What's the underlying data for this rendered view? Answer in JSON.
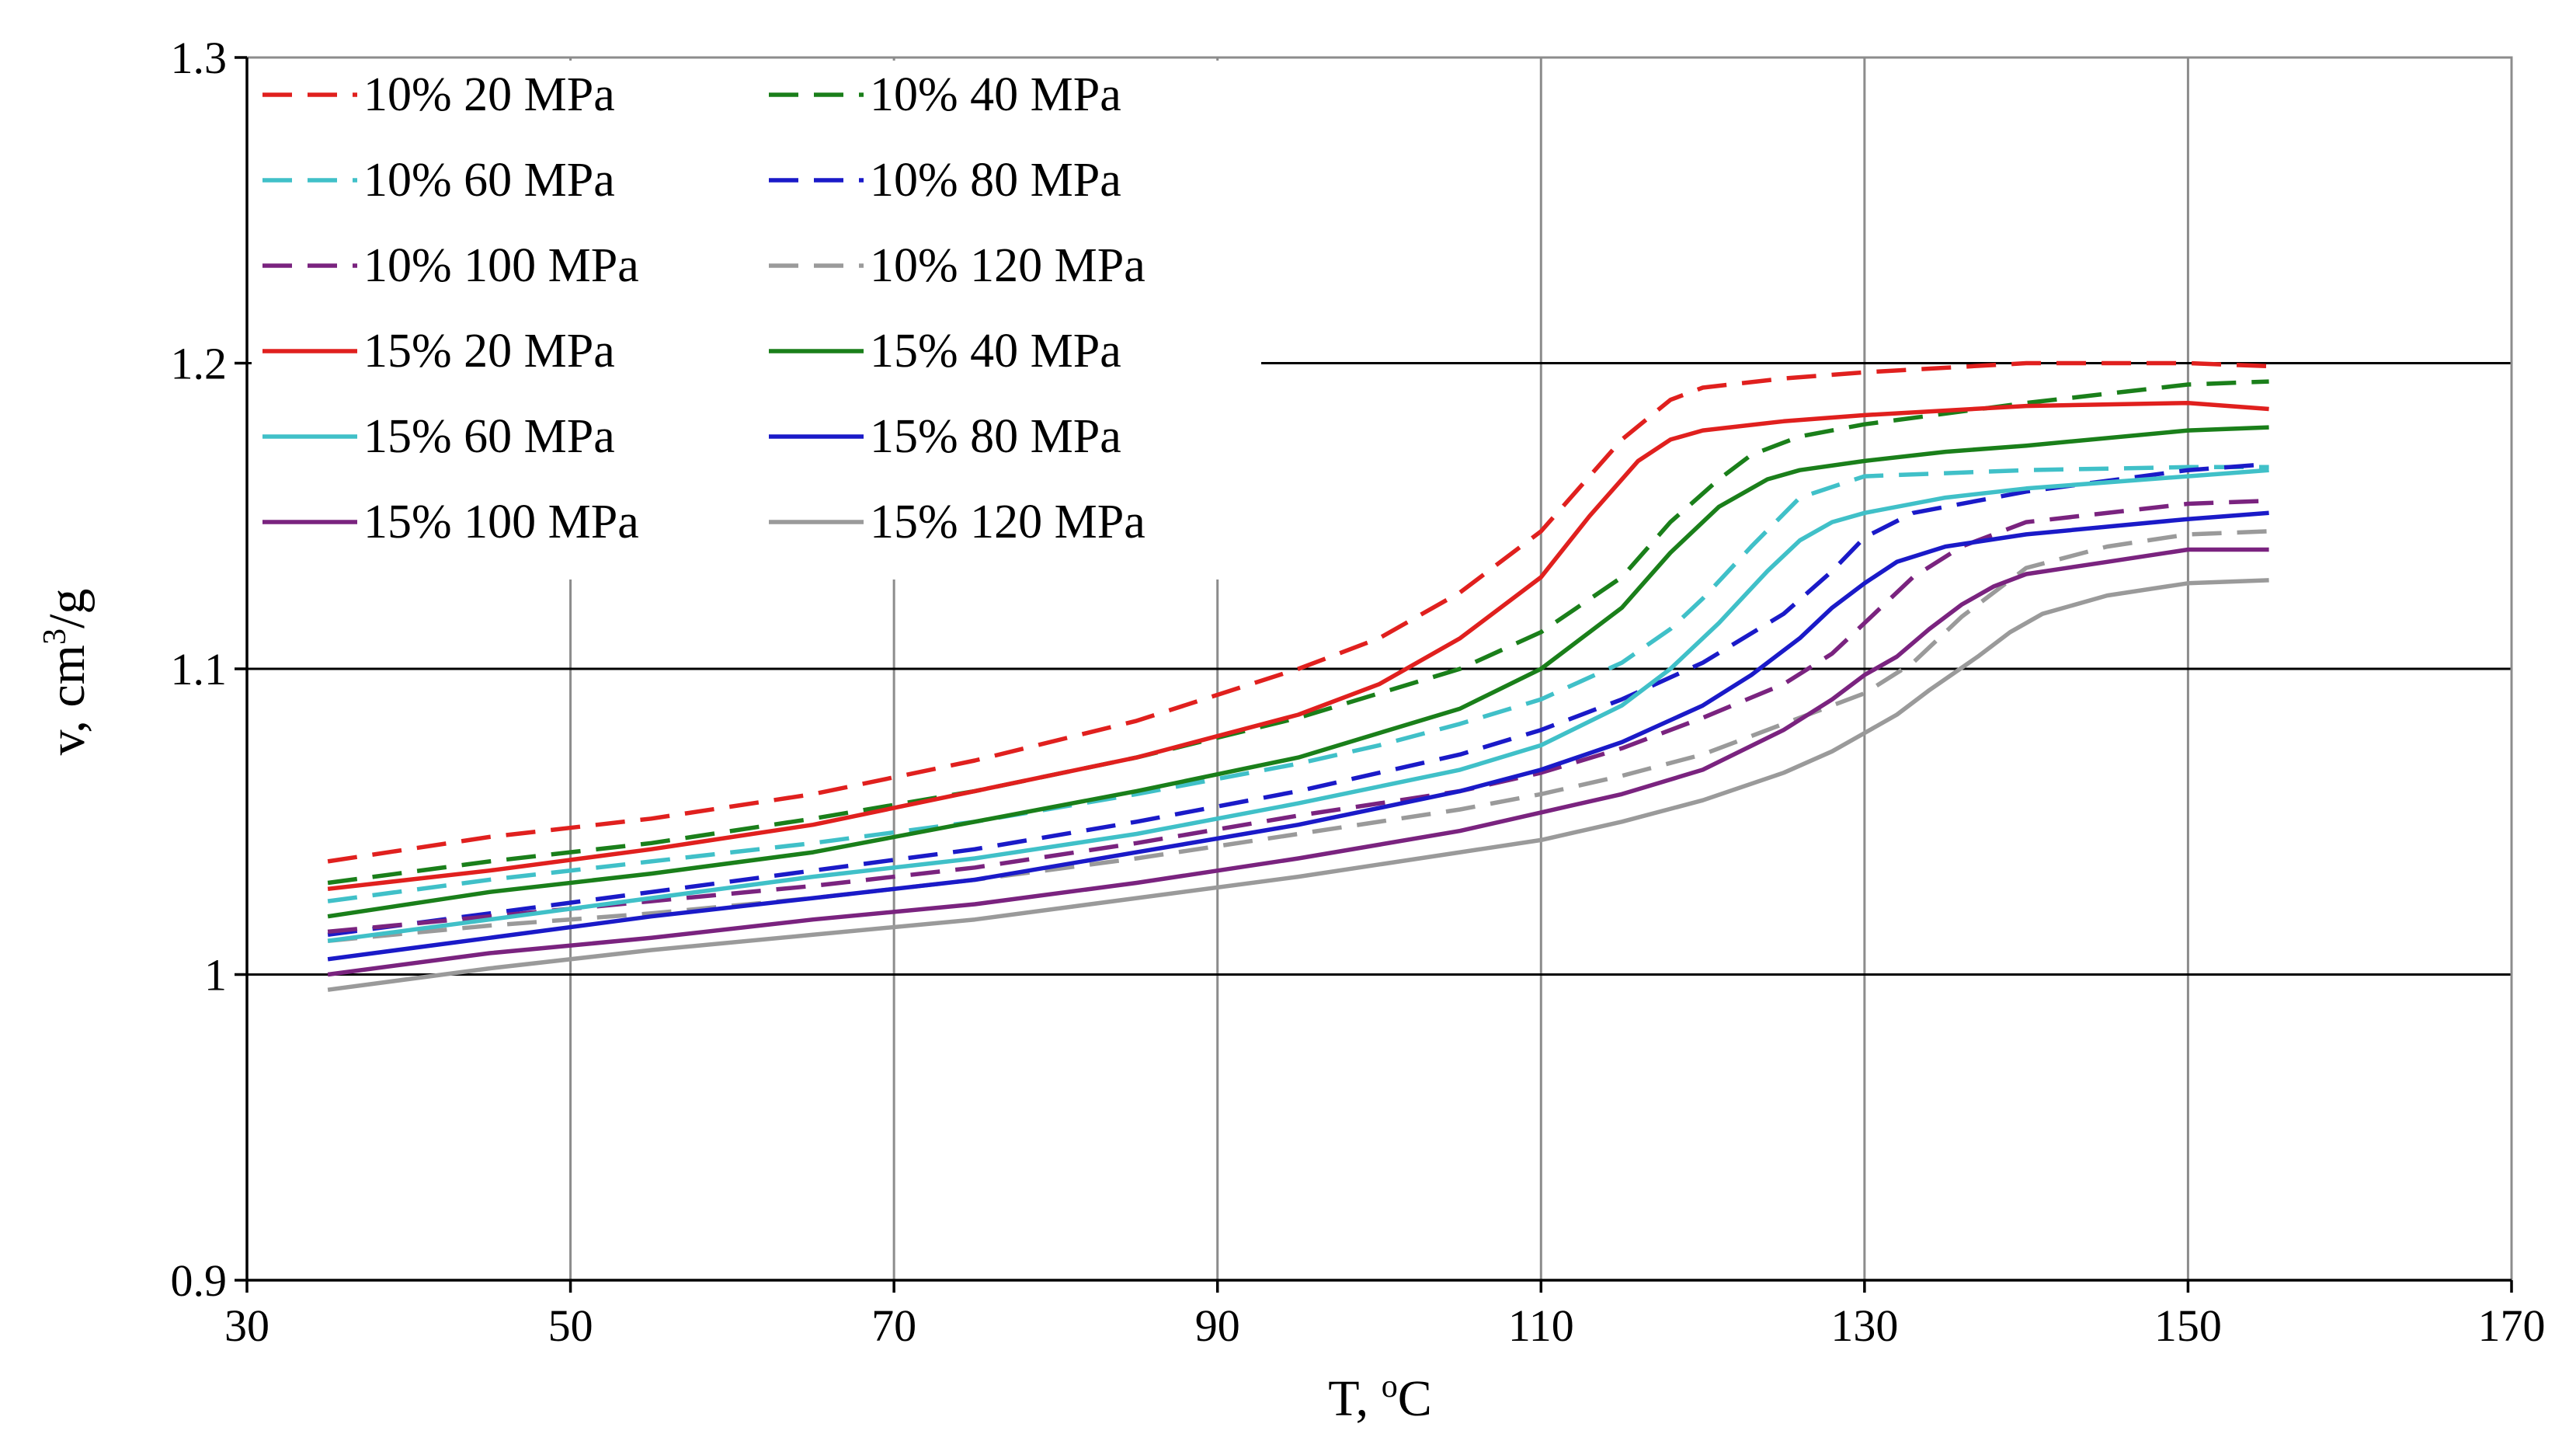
{
  "chart_data": {
    "type": "line",
    "title": "",
    "xlabel": "T, °C",
    "xlabel_main": "T, ",
    "xlabel_sup": "o",
    "xlabel_unit": "C",
    "ylabel": "v, cm³/g",
    "ylabel_main": "v, cm",
    "ylabel_sup": "3",
    "ylabel_unit": "/g",
    "xlim": [
      30,
      170
    ],
    "ylim": [
      0.9,
      1.3
    ],
    "x_ticks": [
      30,
      50,
      70,
      90,
      110,
      130,
      150,
      170
    ],
    "x_tick_labels": [
      "30",
      "50",
      "70",
      "90",
      "110",
      "130",
      "150",
      "170"
    ],
    "y_ticks": [
      0.9,
      1.0,
      1.1,
      1.2,
      1.3
    ],
    "y_tick_labels": [
      "0.9",
      "1",
      "1.1",
      "1.2",
      "1.3"
    ],
    "grid": "vertical gray gridlines, horizontal black gridlines",
    "legend_position": "top-left",
    "series": [
      {
        "name": "10% 20 MPa",
        "color": "#E0201E",
        "dash": "dashed",
        "x": [
          35,
          45,
          55,
          65,
          75,
          85,
          95,
          100,
          105,
          110,
          115,
          118,
          120,
          125,
          130,
          140,
          150,
          155
        ],
        "y": [
          1.037,
          1.045,
          1.051,
          1.059,
          1.07,
          1.083,
          1.1,
          1.11,
          1.125,
          1.145,
          1.175,
          1.188,
          1.192,
          1.195,
          1.197,
          1.2,
          1.2,
          1.199
        ]
      },
      {
        "name": "10% 40 MPa",
        "color": "#1A7F1A",
        "dash": "dashed",
        "x": [
          35,
          45,
          55,
          65,
          75,
          85,
          95,
          100,
          105,
          110,
          115,
          118,
          121,
          123,
          126,
          130,
          140,
          150,
          155
        ],
        "y": [
          1.03,
          1.037,
          1.043,
          1.051,
          1.06,
          1.071,
          1.084,
          1.092,
          1.1,
          1.112,
          1.13,
          1.148,
          1.162,
          1.17,
          1.176,
          1.18,
          1.187,
          1.193,
          1.194
        ]
      },
      {
        "name": "10% 60 MPa",
        "color": "#40C0C8",
        "dash": "dashed",
        "x": [
          35,
          45,
          55,
          65,
          75,
          85,
          95,
          100,
          105,
          110,
          115,
          118,
          120,
          123,
          126,
          130,
          140,
          150,
          155
        ],
        "y": [
          1.024,
          1.031,
          1.037,
          1.043,
          1.05,
          1.059,
          1.069,
          1.075,
          1.082,
          1.09,
          1.102,
          1.113,
          1.123,
          1.14,
          1.156,
          1.163,
          1.165,
          1.166,
          1.166
        ]
      },
      {
        "name": "10% 80 MPa",
        "color": "#1A1AC8",
        "dash": "dashed",
        "x": [
          35,
          45,
          55,
          65,
          75,
          85,
          95,
          105,
          110,
          115,
          120,
          125,
          128,
          130,
          133,
          140,
          150,
          155
        ],
        "y": [
          1.013,
          1.02,
          1.027,
          1.034,
          1.041,
          1.05,
          1.06,
          1.072,
          1.08,
          1.09,
          1.102,
          1.118,
          1.132,
          1.143,
          1.151,
          1.158,
          1.165,
          1.167
        ]
      },
      {
        "name": "10% 100 MPa",
        "color": "#7A237F",
        "dash": "dashed",
        "x": [
          35,
          45,
          55,
          65,
          75,
          85,
          95,
          105,
          110,
          115,
          120,
          125,
          128,
          130,
          133,
          136,
          140,
          150,
          155
        ],
        "y": [
          1.014,
          1.019,
          1.024,
          1.029,
          1.035,
          1.043,
          1.052,
          1.06,
          1.066,
          1.074,
          1.084,
          1.095,
          1.105,
          1.115,
          1.13,
          1.14,
          1.148,
          1.154,
          1.155
        ]
      },
      {
        "name": "10% 120 MPa",
        "color": "#9A9A9A",
        "dash": "dashed",
        "x": [
          35,
          45,
          55,
          65,
          75,
          85,
          95,
          105,
          110,
          115,
          120,
          125,
          130,
          133,
          136,
          140,
          145,
          150,
          155
        ],
        "y": [
          1.011,
          1.016,
          1.02,
          1.025,
          1.031,
          1.038,
          1.046,
          1.054,
          1.059,
          1.065,
          1.072,
          1.082,
          1.092,
          1.102,
          1.117,
          1.133,
          1.14,
          1.144,
          1.145
        ]
      },
      {
        "name": "15% 20 MPa",
        "color": "#E0201E",
        "dash": "solid",
        "x": [
          35,
          45,
          55,
          65,
          75,
          85,
          95,
          100,
          105,
          110,
          113,
          116,
          118,
          120,
          125,
          130,
          140,
          150,
          155
        ],
        "y": [
          1.028,
          1.034,
          1.041,
          1.049,
          1.06,
          1.071,
          1.085,
          1.095,
          1.11,
          1.13,
          1.15,
          1.168,
          1.175,
          1.178,
          1.181,
          1.183,
          1.186,
          1.187,
          1.185
        ]
      },
      {
        "name": "15% 40 MPa",
        "color": "#1A7F1A",
        "dash": "solid",
        "x": [
          35,
          45,
          55,
          65,
          75,
          85,
          95,
          100,
          105,
          110,
          115,
          118,
          121,
          124,
          126,
          130,
          135,
          140,
          150,
          155
        ],
        "y": [
          1.019,
          1.027,
          1.033,
          1.04,
          1.05,
          1.06,
          1.071,
          1.079,
          1.087,
          1.1,
          1.12,
          1.138,
          1.153,
          1.162,
          1.165,
          1.168,
          1.171,
          1.173,
          1.178,
          1.179
        ]
      },
      {
        "name": "15% 60 MPa",
        "color": "#40C0C8",
        "dash": "solid",
        "x": [
          35,
          45,
          55,
          65,
          75,
          85,
          95,
          105,
          110,
          115,
          118,
          121,
          124,
          126,
          128,
          130,
          135,
          140,
          150,
          155
        ],
        "y": [
          1.011,
          1.018,
          1.025,
          1.032,
          1.038,
          1.046,
          1.056,
          1.067,
          1.075,
          1.088,
          1.1,
          1.115,
          1.132,
          1.142,
          1.148,
          1.151,
          1.156,
          1.159,
          1.163,
          1.165
        ]
      },
      {
        "name": "15% 80 MPa",
        "color": "#1A1AC8",
        "dash": "solid",
        "x": [
          35,
          45,
          55,
          65,
          75,
          85,
          95,
          105,
          110,
          115,
          120,
          123,
          126,
          128,
          130,
          132,
          135,
          140,
          150,
          155
        ],
        "y": [
          1.005,
          1.012,
          1.019,
          1.025,
          1.031,
          1.04,
          1.049,
          1.06,
          1.067,
          1.076,
          1.088,
          1.098,
          1.11,
          1.12,
          1.128,
          1.135,
          1.14,
          1.144,
          1.149,
          1.151
        ]
      },
      {
        "name": "15% 100 MPa",
        "color": "#7A237F",
        "dash": "solid",
        "x": [
          35,
          45,
          55,
          65,
          75,
          85,
          95,
          105,
          110,
          115,
          120,
          125,
          128,
          130,
          132,
          134,
          136,
          138,
          140,
          145,
          150,
          155
        ],
        "y": [
          1.0,
          1.007,
          1.012,
          1.018,
          1.023,
          1.03,
          1.038,
          1.047,
          1.053,
          1.059,
          1.067,
          1.08,
          1.09,
          1.098,
          1.104,
          1.113,
          1.121,
          1.127,
          1.131,
          1.135,
          1.139,
          1.139
        ]
      },
      {
        "name": "15% 120 MPa",
        "color": "#9A9A9A",
        "dash": "solid",
        "x": [
          35,
          45,
          55,
          65,
          75,
          85,
          95,
          105,
          110,
          115,
          120,
          125,
          128,
          130,
          132,
          134,
          137,
          139,
          141,
          145,
          150,
          155
        ],
        "y": [
          0.995,
          1.002,
          1.008,
          1.013,
          1.018,
          1.025,
          1.032,
          1.04,
          1.044,
          1.05,
          1.057,
          1.066,
          1.073,
          1.079,
          1.085,
          1.093,
          1.104,
          1.112,
          1.118,
          1.124,
          1.128,
          1.129
        ]
      }
    ]
  }
}
